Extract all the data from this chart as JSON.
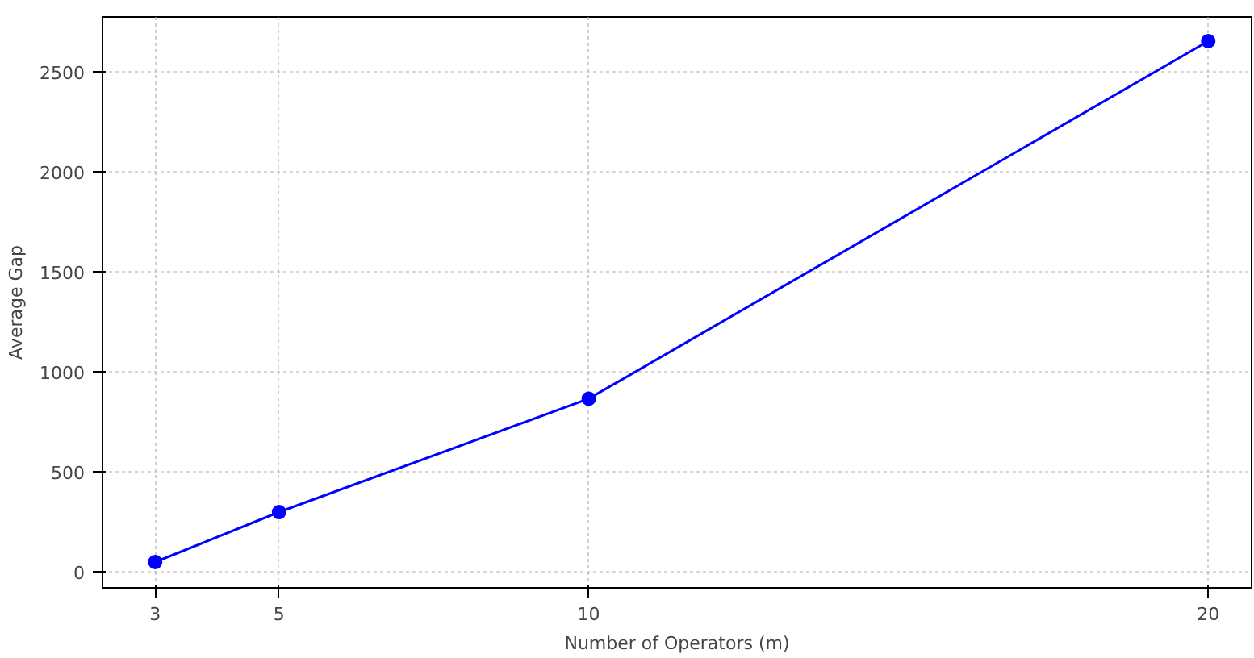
{
  "chart_data": {
    "type": "line",
    "xlabel": "Number of Operators (m)",
    "ylabel": "Average Gap",
    "x": [
      3,
      5,
      10,
      20
    ],
    "series": [
      {
        "color": "#0000ff",
        "values": [
          49,
          299,
          866,
          2654
        ]
      }
    ],
    "xlim": [
      2.15,
      20.7
    ],
    "ylim": [
      -80,
      2775
    ],
    "xticks": [
      3,
      5,
      10,
      20
    ],
    "yticks": [
      0,
      500,
      1000,
      1500,
      2000,
      2500
    ],
    "grid": true,
    "marker": "circle",
    "line_style": "solid"
  }
}
